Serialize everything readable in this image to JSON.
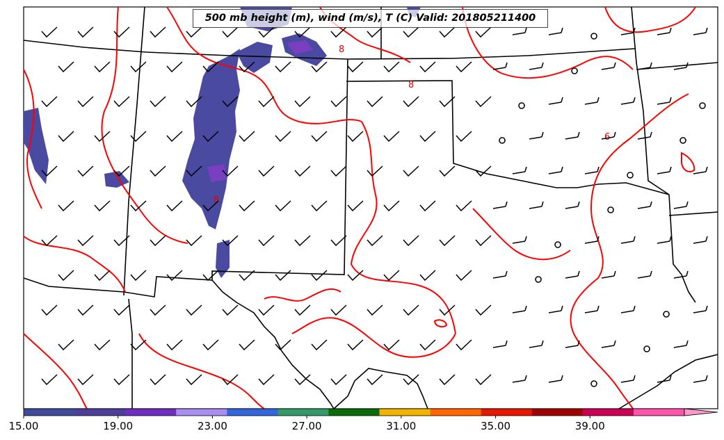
{
  "title": "500 mb height (m), wind (m/s), T (C) Valid: 201805211400",
  "colorbar": {
    "ticks": [
      "15.00",
      "19.00",
      "23.00",
      "27.00",
      "31.00",
      "35.00",
      "39.00"
    ],
    "min": 15,
    "max": 43,
    "colors": [
      "#3f4a9a",
      "#4d3f99",
      "#6c2fbf",
      "#a68ef3",
      "#3366dd",
      "#339966",
      "#0b6b0b",
      "#f2b400",
      "#ff6600",
      "#e81800",
      "#a00000",
      "#cc0055",
      "#ff55aa",
      "#ff99cc"
    ]
  },
  "contour_labels": [
    "6",
    "8",
    "8",
    "8"
  ],
  "colors": {
    "contour": "#ff0000",
    "shade": "#4a4aa0",
    "boundary": "#000000"
  }
}
